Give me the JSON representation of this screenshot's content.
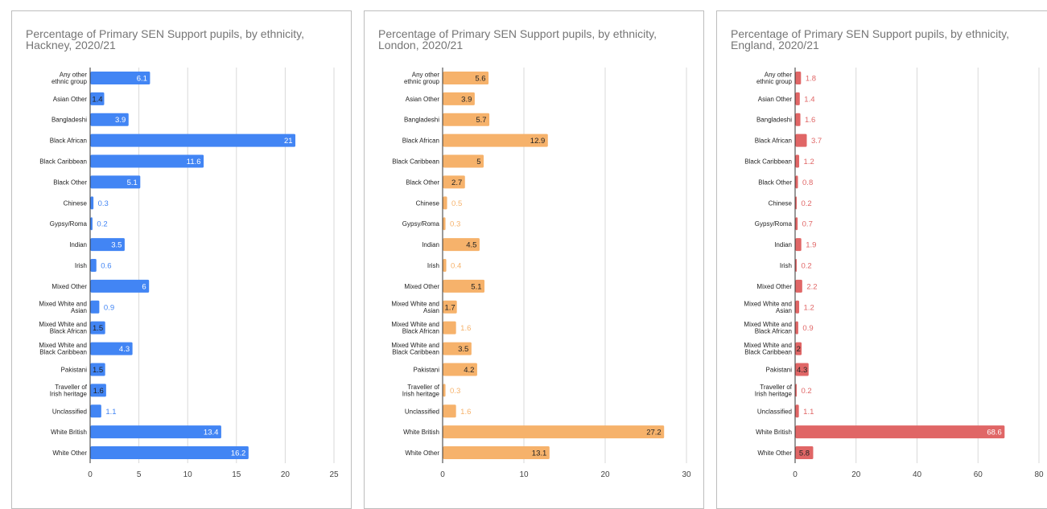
{
  "chart_data": [
    {
      "type": "bar",
      "orientation": "horizontal",
      "title": "Percentage of Primary SEN Support pupils, by ethnicity, Hackney, 2020/21",
      "color": "#4285f4",
      "xlim": [
        0,
        25
      ],
      "ticks": [
        0,
        5,
        10,
        15,
        20,
        25
      ],
      "categories": [
        "Any other ethnic group",
        "Asian Other",
        "Bangladeshi",
        "Black African",
        "Black Caribbean",
        "Black Other",
        "Chinese",
        "Gypsy/Roma",
        "Indian",
        "Irish",
        "Mixed Other",
        "Mixed White and Asian",
        "Mixed White and Black African",
        "Mixed White and Black Caribbean",
        "Pakistani",
        "Traveller of Irish heritage",
        "Unclassified",
        "White British",
        "White Other"
      ],
      "values": [
        6.1,
        1.4,
        3.9,
        21,
        11.6,
        5.1,
        0.3,
        0.2,
        3.5,
        0.6,
        6,
        0.9,
        1.5,
        4.3,
        1.5,
        1.6,
        1.1,
        13.4,
        16.2
      ],
      "grid": true
    },
    {
      "type": "bar",
      "orientation": "horizontal",
      "title": "Percentage of Primary SEN Support pupils, by ethnicity, London, 2020/21",
      "color": "#f6b26b",
      "xlim": [
        0,
        30
      ],
      "ticks": [
        0,
        10,
        20,
        30
      ],
      "categories": [
        "Any other ethnic group",
        "Asian Other",
        "Bangladeshi",
        "Black African",
        "Black Caribbean",
        "Black Other",
        "Chinese",
        "Gypsy/Roma",
        "Indian",
        "Irish",
        "Mixed Other",
        "Mixed White and Asian",
        "Mixed White and Black African",
        "Mixed White and Black Caribbean",
        "Pakistani",
        "Traveller of Irish heritage",
        "Unclassified",
        "White British",
        "White Other"
      ],
      "values": [
        5.6,
        3.9,
        5.7,
        12.9,
        5,
        2.7,
        0.5,
        0.3,
        4.5,
        0.4,
        5.1,
        1.7,
        1.6,
        3.5,
        4.2,
        0.3,
        1.6,
        27.2,
        13.1
      ],
      "grid": true
    },
    {
      "type": "bar",
      "orientation": "horizontal",
      "title": "Percentage of Primary SEN Support pupils, by ethnicity, England, 2020/21",
      "color": "#e06666",
      "xlim": [
        0,
        80
      ],
      "ticks": [
        0,
        20,
        40,
        60,
        80
      ],
      "categories": [
        "Any other ethnic group",
        "Asian Other",
        "Bangladeshi",
        "Black African",
        "Black Caribbean",
        "Black Other",
        "Chinese",
        "Gypsy/Roma",
        "Indian",
        "Irish",
        "Mixed Other",
        "Mixed White and Asian",
        "Mixed White and Black African",
        "Mixed White and Black Caribbean",
        "Pakistani",
        "Traveller of Irish heritage",
        "Unclassified",
        "White British",
        "White Other"
      ],
      "values": [
        1.8,
        1.4,
        1.6,
        3.7,
        1.2,
        0.8,
        0.2,
        0.7,
        1.9,
        0.2,
        2.2,
        1.2,
        0.9,
        2,
        4.3,
        0.2,
        1.1,
        68.6,
        5.8
      ],
      "grid": true
    }
  ]
}
